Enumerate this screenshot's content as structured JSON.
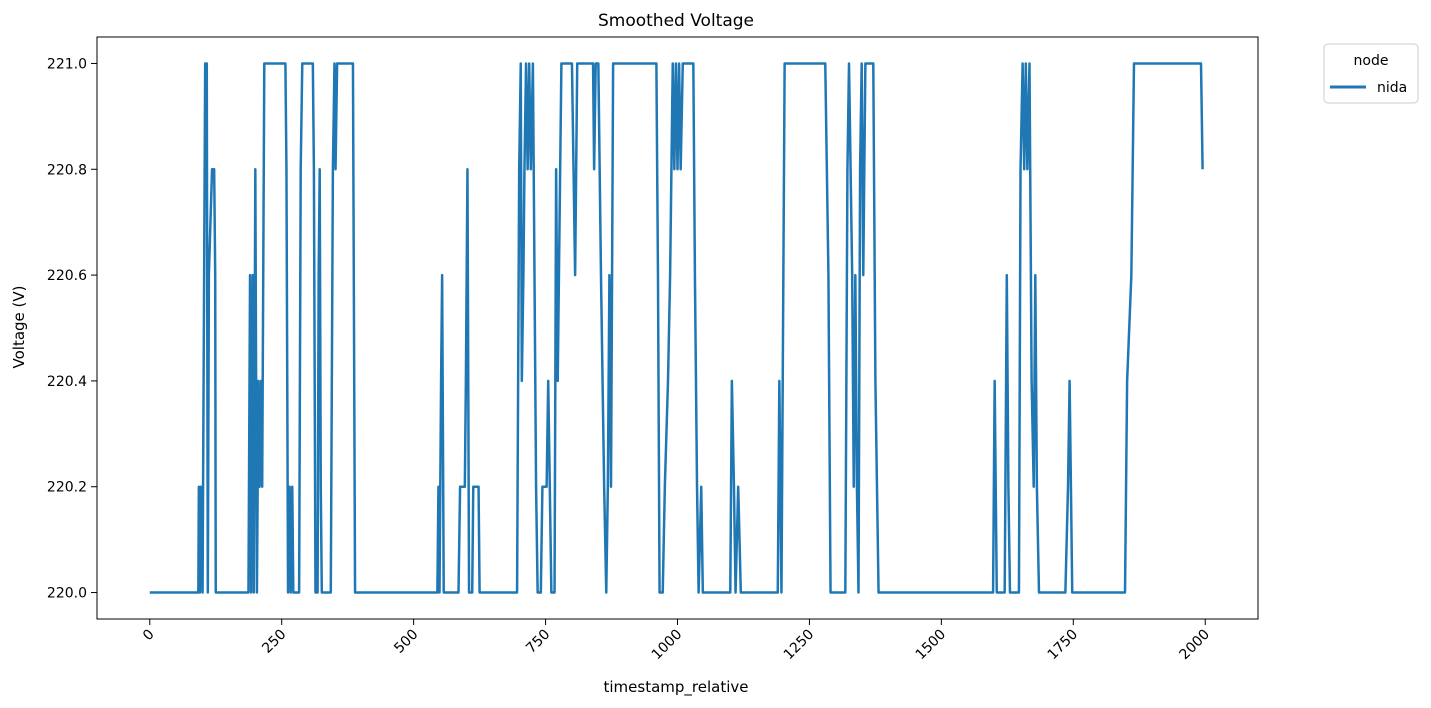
{
  "chart_data": {
    "type": "line",
    "title": "Smoothed Voltage",
    "xlabel": "timestamp_relative",
    "ylabel": "Voltage (V)",
    "xlim": [
      -100,
      2100
    ],
    "ylim": [
      219.95,
      221.05
    ],
    "x_ticks": [
      0,
      250,
      500,
      750,
      1000,
      1250,
      1500,
      1750,
      2000
    ],
    "y_ticks": [
      220.0,
      220.2,
      220.4,
      220.6,
      220.8,
      221.0
    ],
    "x_tick_labels": [
      "0",
      "250",
      "500",
      "750",
      "1000",
      "1250",
      "1500",
      "1750",
      "2000"
    ],
    "y_tick_labels": [
      "220.0",
      "220.2",
      "220.4",
      "220.6",
      "220.8",
      "221.0"
    ],
    "x_tick_rotation": 45,
    "grid": false,
    "legend": {
      "title": "node",
      "placement": "upper-right-outside"
    },
    "series": [
      {
        "name": "nida",
        "color": "#1f77b4",
        "points": [
          [
            0,
            220.0
          ],
          [
            92,
            220.0
          ],
          [
            93,
            220.2
          ],
          [
            95,
            220.0
          ],
          [
            97,
            220.2
          ],
          [
            100,
            220.0
          ],
          [
            105,
            221.0
          ],
          [
            108,
            221.0
          ],
          [
            110,
            220.0
          ],
          [
            112,
            220.6
          ],
          [
            118,
            220.8
          ],
          [
            122,
            220.8
          ],
          [
            124,
            220.6
          ],
          [
            125,
            220.0
          ],
          [
            187,
            220.0
          ],
          [
            190,
            220.6
          ],
          [
            192,
            220.0
          ],
          [
            195,
            220.6
          ],
          [
            197,
            220.0
          ],
          [
            200,
            220.8
          ],
          [
            203,
            220.0
          ],
          [
            206,
            220.4
          ],
          [
            208,
            220.2
          ],
          [
            211,
            220.4
          ],
          [
            213,
            220.2
          ],
          [
            217,
            221.0
          ],
          [
            257,
            221.0
          ],
          [
            259,
            220.8
          ],
          [
            262,
            220.0
          ],
          [
            265,
            220.2
          ],
          [
            267,
            220.0
          ],
          [
            270,
            220.2
          ],
          [
            272,
            220.0
          ],
          [
            283,
            220.0
          ],
          [
            286,
            220.8
          ],
          [
            289,
            221.0
          ],
          [
            309,
            221.0
          ],
          [
            311,
            220.8
          ],
          [
            314,
            220.0
          ],
          [
            318,
            220.0
          ],
          [
            320,
            220.6
          ],
          [
            322,
            220.8
          ],
          [
            324,
            220.2
          ],
          [
            326,
            220.0
          ],
          [
            343,
            220.0
          ],
          [
            347,
            220.8
          ],
          [
            350,
            221.0
          ],
          [
            352,
            220.8
          ],
          [
            355,
            221.0
          ],
          [
            385,
            221.0
          ],
          [
            389,
            220.0
          ],
          [
            545,
            220.0
          ],
          [
            547,
            220.2
          ],
          [
            549,
            220.0
          ],
          [
            552,
            220.4
          ],
          [
            554,
            220.6
          ],
          [
            557,
            220.0
          ],
          [
            585,
            220.0
          ],
          [
            588,
            220.2
          ],
          [
            597,
            220.2
          ],
          [
            599,
            220.4
          ],
          [
            602,
            220.8
          ],
          [
            605,
            220.0
          ],
          [
            611,
            220.0
          ],
          [
            613,
            220.2
          ],
          [
            623,
            220.2
          ],
          [
            625,
            220.0
          ],
          [
            696,
            220.0
          ],
          [
            700,
            220.8
          ],
          [
            703,
            221.0
          ],
          [
            705,
            220.4
          ],
          [
            708,
            220.6
          ],
          [
            710,
            220.8
          ],
          [
            713,
            221.0
          ],
          [
            716,
            220.8
          ],
          [
            719,
            221.0
          ],
          [
            722,
            220.8
          ],
          [
            726,
            221.0
          ],
          [
            729,
            220.6
          ],
          [
            732,
            220.2
          ],
          [
            735,
            220.0
          ],
          [
            741,
            220.0
          ],
          [
            744,
            220.2
          ],
          [
            752,
            220.2
          ],
          [
            755,
            220.4
          ],
          [
            758,
            220.2
          ],
          [
            761,
            220.0
          ],
          [
            767,
            220.0
          ],
          [
            770,
            220.8
          ],
          [
            773,
            220.4
          ],
          [
            780,
            221.0
          ],
          [
            800,
            221.0
          ],
          [
            803,
            220.8
          ],
          [
            806,
            220.6
          ],
          [
            810,
            221.0
          ],
          [
            840,
            221.0
          ],
          [
            842,
            220.8
          ],
          [
            845,
            221.0
          ],
          [
            850,
            221.0
          ],
          [
            855,
            220.6
          ],
          [
            858,
            220.4
          ],
          [
            861,
            220.2
          ],
          [
            865,
            220.0
          ],
          [
            868,
            220.2
          ],
          [
            871,
            220.6
          ],
          [
            874,
            220.2
          ],
          [
            878,
            221.0
          ],
          [
            960,
            221.0
          ],
          [
            963,
            220.6
          ],
          [
            966,
            220.0
          ],
          [
            972,
            220.0
          ],
          [
            976,
            220.2
          ],
          [
            982,
            220.4
          ],
          [
            986,
            220.6
          ],
          [
            991,
            221.0
          ],
          [
            994,
            220.8
          ],
          [
            997,
            221.0
          ],
          [
            1000,
            220.8
          ],
          [
            1003,
            221.0
          ],
          [
            1006,
            220.8
          ],
          [
            1010,
            221.0
          ],
          [
            1030,
            221.0
          ],
          [
            1033,
            220.6
          ],
          [
            1037,
            220.2
          ],
          [
            1040,
            220.0
          ],
          [
            1045,
            220.2
          ],
          [
            1048,
            220.0
          ],
          [
            1100,
            220.0
          ],
          [
            1103,
            220.4
          ],
          [
            1107,
            220.2
          ],
          [
            1110,
            220.0
          ],
          [
            1115,
            220.2
          ],
          [
            1120,
            220.0
          ],
          [
            1190,
            220.0
          ],
          [
            1193,
            220.4
          ],
          [
            1197,
            220.0
          ],
          [
            1203,
            221.0
          ],
          [
            1280,
            221.0
          ],
          [
            1283,
            220.8
          ],
          [
            1286,
            220.6
          ],
          [
            1290,
            220.0
          ],
          [
            1318,
            220.0
          ],
          [
            1322,
            220.8
          ],
          [
            1325,
            221.0
          ],
          [
            1328,
            220.8
          ],
          [
            1331,
            220.6
          ],
          [
            1334,
            220.2
          ],
          [
            1337,
            220.6
          ],
          [
            1340,
            220.2
          ],
          [
            1343,
            220.0
          ],
          [
            1346,
            220.8
          ],
          [
            1349,
            221.0
          ],
          [
            1352,
            220.6
          ],
          [
            1356,
            221.0
          ],
          [
            1371,
            221.0
          ],
          [
            1375,
            220.4
          ],
          [
            1378,
            220.2
          ],
          [
            1381,
            220.0
          ],
          [
            1598,
            220.0
          ],
          [
            1601,
            220.4
          ],
          [
            1605,
            220.0
          ],
          [
            1620,
            220.0
          ],
          [
            1624,
            220.6
          ],
          [
            1627,
            220.2
          ],
          [
            1630,
            220.0
          ],
          [
            1647,
            220.0
          ],
          [
            1650,
            220.8
          ],
          [
            1654,
            221.0
          ],
          [
            1657,
            220.8
          ],
          [
            1660,
            221.0
          ],
          [
            1663,
            220.8
          ],
          [
            1667,
            221.0
          ],
          [
            1671,
            220.4
          ],
          [
            1675,
            220.2
          ],
          [
            1678,
            220.6
          ],
          [
            1681,
            220.2
          ],
          [
            1685,
            220.0
          ],
          [
            1735,
            220.0
          ],
          [
            1740,
            220.2
          ],
          [
            1743,
            220.4
          ],
          [
            1748,
            220.0
          ],
          [
            1848,
            220.0
          ],
          [
            1852,
            220.4
          ],
          [
            1860,
            220.6
          ],
          [
            1865,
            221.0
          ],
          [
            1992,
            221.0
          ],
          [
            1995,
            220.8
          ]
        ]
      }
    ]
  }
}
